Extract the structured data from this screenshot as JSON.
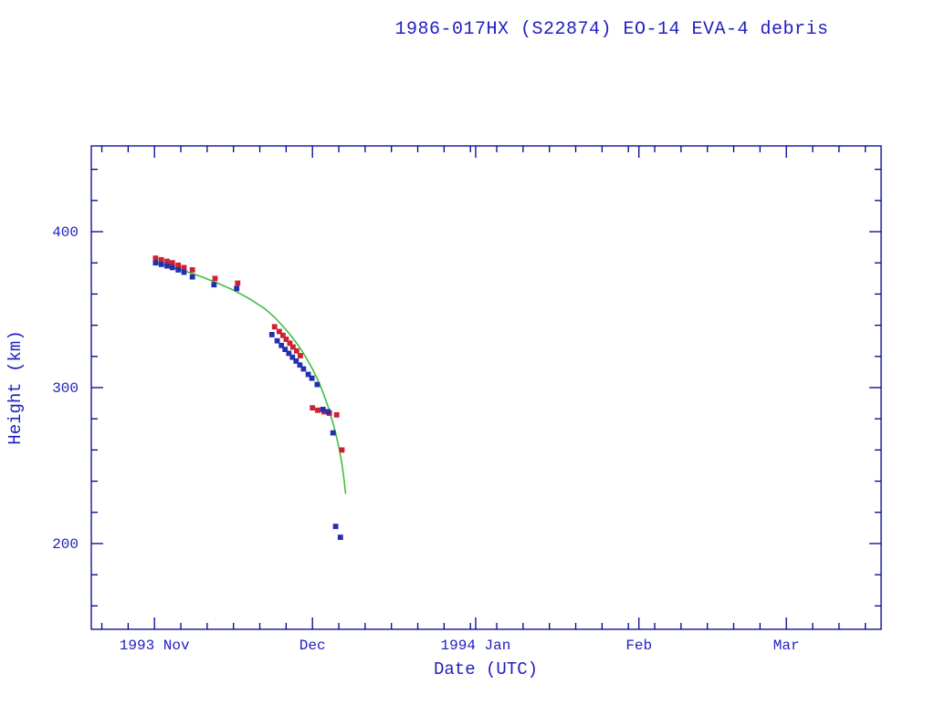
{
  "title": "1986-017HX (S22874) EO-14 EVA-4 debris",
  "colors": {
    "background": "#ffffff",
    "axis": "#000090",
    "text": "#2020c0",
    "apogee": "#cc2230",
    "perigee": "#2230b0",
    "fit": "#3fbf3f"
  },
  "chart_data": {
    "type": "scatter",
    "title": "1986-017HX (S22874) EO-14 EVA-4 debris",
    "xlabel": "Date (UTC)",
    "ylabel": "Height (km)",
    "grid": false,
    "legend": false,
    "x_axis": {
      "unit": "days since 1993-11-01",
      "range": [
        -12,
        138
      ],
      "minor_step_days": 5,
      "major_ticks": [
        {
          "day": 0,
          "label": "1993 Nov"
        },
        {
          "day": 30,
          "label": "Dec"
        },
        {
          "day": 61,
          "label": "1994 Jan"
        },
        {
          "day": 92,
          "label": "Feb"
        },
        {
          "day": 120,
          "label": "Mar"
        }
      ]
    },
    "y_axis": {
      "range": [
        145,
        455
      ],
      "minor_step": 20,
      "major_ticks": [
        {
          "value": 200,
          "label": "200"
        },
        {
          "value": 300,
          "label": "300"
        },
        {
          "value": 400,
          "label": "400"
        }
      ]
    },
    "series": [
      {
        "name": "apogee-height",
        "marker": "square",
        "line": false,
        "color": "#cc2230",
        "points": [
          [
            0.2,
            383
          ],
          [
            1.3,
            382
          ],
          [
            2.4,
            381
          ],
          [
            3.4,
            380
          ],
          [
            4.5,
            378.5
          ],
          [
            5.6,
            377
          ],
          [
            7.2,
            375.5
          ],
          [
            11.5,
            370
          ],
          [
            15.8,
            367
          ],
          [
            22.8,
            339
          ],
          [
            23.7,
            336
          ],
          [
            24.4,
            333.5
          ],
          [
            25.0,
            331
          ],
          [
            25.7,
            328.5
          ],
          [
            26.3,
            326
          ],
          [
            27.0,
            323.5
          ],
          [
            27.7,
            320.5
          ],
          [
            30.0,
            287
          ],
          [
            31.0,
            285.5
          ],
          [
            32.2,
            284.5
          ],
          [
            33.2,
            283.5
          ],
          [
            34.6,
            282.5
          ],
          [
            35.6,
            260
          ]
        ]
      },
      {
        "name": "perigee-height",
        "marker": "square",
        "line": false,
        "color": "#2230b0",
        "points": [
          [
            0.2,
            380
          ],
          [
            1.3,
            379
          ],
          [
            2.4,
            378
          ],
          [
            3.4,
            377
          ],
          [
            4.5,
            375.5
          ],
          [
            5.6,
            374
          ],
          [
            7.2,
            371
          ],
          [
            11.3,
            366
          ],
          [
            15.6,
            363.5
          ],
          [
            22.3,
            334
          ],
          [
            23.3,
            330
          ],
          [
            24.1,
            327
          ],
          [
            24.8,
            324.5
          ],
          [
            25.5,
            322
          ],
          [
            26.2,
            319.5
          ],
          [
            26.9,
            317
          ],
          [
            27.6,
            314.5
          ],
          [
            28.3,
            312
          ],
          [
            29.2,
            308.5
          ],
          [
            29.9,
            306
          ],
          [
            30.9,
            302
          ],
          [
            32.0,
            286
          ],
          [
            33.0,
            284.5
          ],
          [
            33.9,
            271
          ],
          [
            34.4,
            211
          ],
          [
            35.3,
            204
          ]
        ]
      },
      {
        "name": "decay-fit-curve",
        "marker": null,
        "line": true,
        "color": "#3fbf3f",
        "points": [
          [
            0,
            380
          ],
          [
            3,
            377.5
          ],
          [
            6,
            374.5
          ],
          [
            9,
            371
          ],
          [
            12,
            367
          ],
          [
            15,
            362.5
          ],
          [
            18,
            357
          ],
          [
            21,
            350.5
          ],
          [
            23,
            344.5
          ],
          [
            25,
            337
          ],
          [
            26,
            333
          ],
          [
            27,
            328.5
          ],
          [
            28,
            323.5
          ],
          [
            29,
            318
          ],
          [
            30,
            312
          ],
          [
            31,
            305
          ],
          [
            32,
            297
          ],
          [
            33,
            287.5
          ],
          [
            34,
            276
          ],
          [
            34.5,
            269.5
          ],
          [
            35,
            262
          ],
          [
            35.4,
            255
          ],
          [
            35.7,
            248.5
          ],
          [
            36.0,
            241
          ],
          [
            36.3,
            232
          ]
        ]
      }
    ]
  }
}
